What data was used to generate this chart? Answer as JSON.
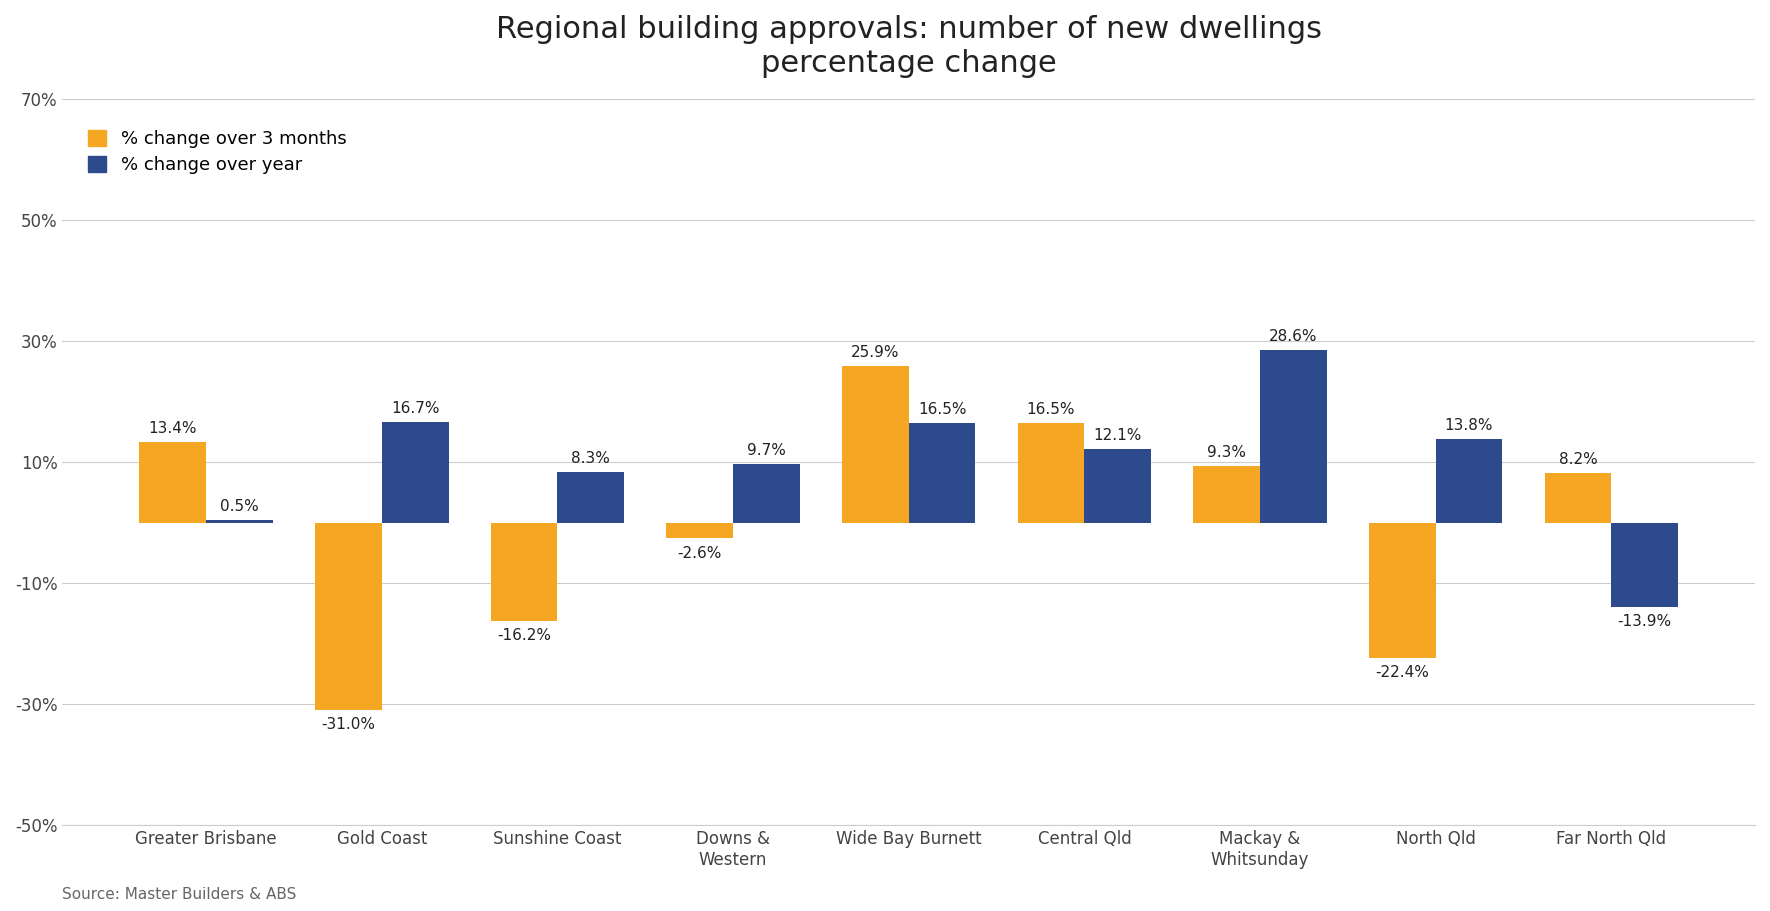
{
  "title": "Regional building approvals: number of new dwellings\npercentage change",
  "categories": [
    "Greater Brisbane",
    "Gold Coast",
    "Sunshine Coast",
    "Downs &\nWestern",
    "Wide Bay Burnett",
    "Central Qld",
    "Mackay &\nWhitsunday",
    "North Qld",
    "Far North Qld"
  ],
  "three_months": [
    13.4,
    -31.0,
    -16.2,
    -2.6,
    25.9,
    16.5,
    9.3,
    -22.4,
    8.2
  ],
  "over_year": [
    0.5,
    16.7,
    8.3,
    9.7,
    16.5,
    12.1,
    28.6,
    13.8,
    -13.9
  ],
  "color_3months": "#F5A623",
  "color_year": "#2D4A8C",
  "ylim": [
    -50,
    70
  ],
  "yticks": [
    -50,
    -30,
    -10,
    10,
    30,
    50,
    70
  ],
  "ytick_labels": [
    "-50%",
    "-30%",
    "-10%",
    "10%",
    "30%",
    "50%",
    "70%"
  ],
  "legend_3months": "% change over 3 months",
  "legend_year": "% change over year",
  "source": "Source: Master Builders & ABS",
  "bar_width": 0.38,
  "title_fontsize": 22,
  "label_fontsize": 11,
  "tick_fontsize": 12,
  "legend_fontsize": 13,
  "source_fontsize": 11
}
